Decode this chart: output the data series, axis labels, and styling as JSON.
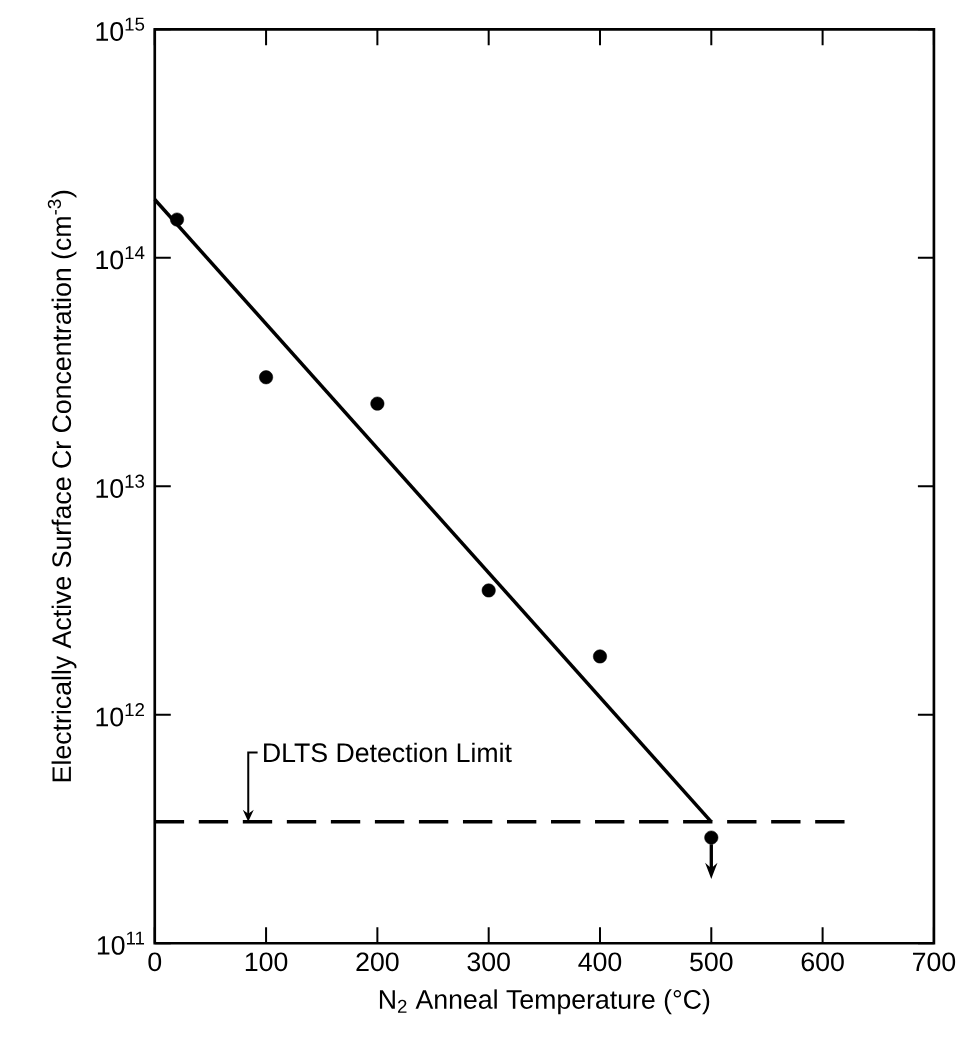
{
  "chart_data": {
    "type": "scatter",
    "xlabel": "N$_{2}$ Anneal Temperature (°C)",
    "ylabel": "Electrically Active Surface Cr Concentration (cm$^{-3}$)",
    "series": [
      {
        "color": "#000000",
        "x": [
          20,
          100,
          200,
          300,
          400,
          500
        ],
        "values": [
          147000000000000.0,
          30000000000000.0,
          23000000000000.0,
          3500000000000.0,
          1800000000000.0,
          290000000000.0
        ]
      },
      {
        "type": "line",
        "color": "#000000",
        "marker": "none",
        "line_style": "solid",
        "x": [
          0,
          500
        ],
        "values": [
          180000000000000.0,
          340000000000.0
        ]
      },
      {
        "type": "line",
        "color": "#000000",
        "marker": "none",
        "line_style": "dashed",
        "x": [
          0,
          620
        ],
        "values": [
          340000000000.0,
          340000000000.0
        ]
      }
    ],
    "annotations": [
      "DLTS Detection Limit"
    ],
    "log": "y",
    "xlim": [
      0,
      700
    ],
    "xticks": [
      0,
      100,
      200,
      300,
      400,
      500,
      600,
      700
    ],
    "ylim": [
      100000000000.0,
      1000000000000000.0
    ],
    "yticks": [
      {
        "value": 100000000000.0,
        "label": "10$^{11}$"
      },
      {
        "value": 1000000000000.0,
        "label": "10$^{12}$"
      },
      {
        "value": 10000000000000.0,
        "label": "10$^{13}$"
      },
      {
        "value": 100000000000000.0,
        "label": "10$^{14}$"
      },
      {
        "value": 1000000000000000.0,
        "label": "10$^{15}$"
      }
    ],
    "marker": "circle"
  }
}
